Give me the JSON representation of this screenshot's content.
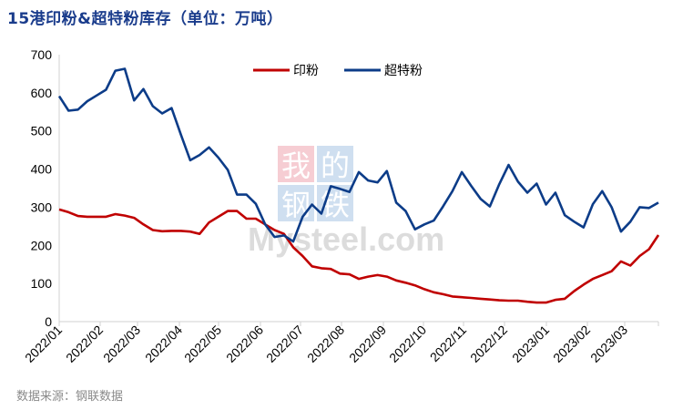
{
  "title": "15港印粉&超特粉库存（单位：万吨）",
  "source": "数据来源：钢联数据",
  "watermark": "我的钢铁 Mysteel.com",
  "chart_data": {
    "type": "line",
    "title": "15港印粉&超特粉库存（单位：万吨）",
    "xlabel": "",
    "ylabel": "",
    "ylim": [
      0,
      700
    ],
    "yticks": [
      0,
      100,
      200,
      300,
      400,
      500,
      600,
      700
    ],
    "x_tick_labels": [
      "2022/01",
      "2022/02",
      "2022/03",
      "2022/04",
      "2022/05",
      "2022/06",
      "2022/07",
      "2022/08",
      "2022/09",
      "2022/10",
      "2022/11",
      "2022/12",
      "2023/01",
      "2023/02",
      "2023/03"
    ],
    "grid": false,
    "legend_position": "top",
    "series": [
      {
        "name": "印粉",
        "color": "#c00000",
        "values": [
          294,
          287,
          277,
          275,
          275,
          275,
          282,
          278,
          272,
          255,
          240,
          237,
          238,
          238,
          236,
          230,
          260,
          275,
          290,
          290,
          270,
          270,
          255,
          240,
          230,
          195,
          172,
          145,
          140,
          138,
          126,
          124,
          112,
          118,
          122,
          118,
          108,
          102,
          95,
          85,
          77,
          72,
          66,
          64,
          62,
          60,
          58,
          56,
          55,
          55,
          52,
          50,
          50,
          57,
          60,
          80,
          97,
          112,
          122,
          132,
          158,
          147,
          172,
          190,
          227
        ]
      },
      {
        "name": "超特粉",
        "color": "#0c3c88",
        "values": [
          591,
          553,
          556,
          578,
          593,
          608,
          658,
          663,
          580,
          610,
          565,
          546,
          560,
          490,
          423,
          437,
          457,
          430,
          398,
          333,
          333,
          309,
          255,
          222,
          226,
          210,
          275,
          307,
          283,
          355,
          348,
          340,
          392,
          370,
          365,
          395,
          312,
          290,
          242,
          255,
          265,
          302,
          342,
          392,
          356,
          322,
          302,
          360,
          411,
          367,
          338,
          362,
          307,
          338,
          279,
          262,
          247,
          308,
          342,
          300,
          236,
          262,
          300,
          298,
          312
        ]
      }
    ]
  }
}
